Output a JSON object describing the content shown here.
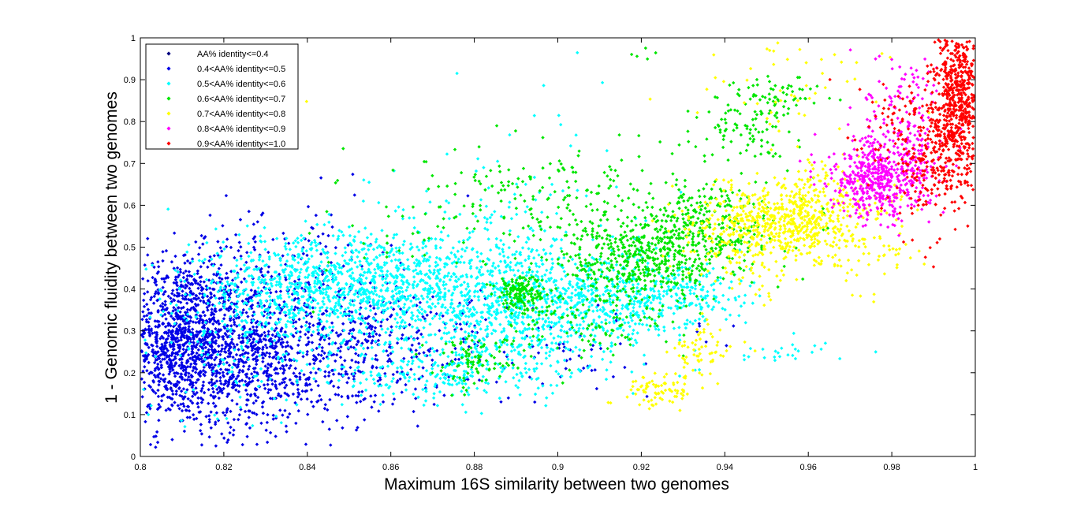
{
  "chart_data": {
    "type": "scatter",
    "title": "",
    "xlabel": "Maximum 16S similarity between two genomes",
    "ylabel": "1 - Genomic fluidity between two genomes",
    "xlim": [
      0.8,
      1.0
    ],
    "ylim": [
      0,
      1
    ],
    "xticks": [
      0.8,
      0.82,
      0.84,
      0.86,
      0.88,
      0.9,
      0.92,
      0.94,
      0.96,
      0.98,
      1
    ],
    "xtick_labels": [
      "0.8",
      "0.82",
      "0.84",
      "0.86",
      "0.88",
      "0.9",
      "0.92",
      "0.94",
      "0.96",
      "0.98",
      "1"
    ],
    "yticks": [
      0,
      0.1,
      0.2,
      0.3,
      0.4,
      0.5,
      0.6,
      0.7,
      0.8,
      0.9,
      1
    ],
    "ytick_labels": [
      "0",
      "0.1",
      "0.2",
      "0.3",
      "0.4",
      "0.5",
      "0.6",
      "0.7",
      "0.8",
      "0.9",
      "1"
    ],
    "grid": false,
    "legend_position": "top-left",
    "marker": "diamond",
    "series": [
      {
        "name": "AA% identity<=0.4",
        "color": "#000080",
        "clusters": [
          {
            "x": 0.806,
            "y": 0.22,
            "sx": 0.004,
            "sy": 0.05,
            "n": 5
          }
        ]
      },
      {
        "name": "0.4<AA% identity<=0.5",
        "color": "#0000e6",
        "clusters": [
          {
            "x": 0.809,
            "y": 0.28,
            "sx": 0.007,
            "sy": 0.1,
            "n": 950
          },
          {
            "x": 0.822,
            "y": 0.26,
            "sx": 0.009,
            "sy": 0.1,
            "n": 650
          },
          {
            "x": 0.838,
            "y": 0.24,
            "sx": 0.011,
            "sy": 0.09,
            "n": 420
          },
          {
            "x": 0.855,
            "y": 0.28,
            "sx": 0.01,
            "sy": 0.08,
            "n": 160
          },
          {
            "x": 0.875,
            "y": 0.27,
            "sx": 0.012,
            "sy": 0.07,
            "n": 80
          },
          {
            "x": 0.835,
            "y": 0.47,
            "sx": 0.012,
            "sy": 0.07,
            "n": 110
          },
          {
            "x": 0.905,
            "y": 0.24,
            "sx": 0.015,
            "sy": 0.06,
            "n": 40
          },
          {
            "x": 0.935,
            "y": 0.3,
            "sx": 0.003,
            "sy": 0.02,
            "n": 6
          }
        ]
      },
      {
        "name": "0.5<AA% identity<=0.6",
        "color": "#00ffff",
        "clusters": [
          {
            "x": 0.84,
            "y": 0.4,
            "sx": 0.014,
            "sy": 0.06,
            "n": 650
          },
          {
            "x": 0.865,
            "y": 0.4,
            "sx": 0.013,
            "sy": 0.07,
            "n": 650
          },
          {
            "x": 0.89,
            "y": 0.35,
            "sx": 0.012,
            "sy": 0.08,
            "n": 550
          },
          {
            "x": 0.91,
            "y": 0.37,
            "sx": 0.012,
            "sy": 0.06,
            "n": 420
          },
          {
            "x": 0.93,
            "y": 0.39,
            "sx": 0.008,
            "sy": 0.04,
            "n": 170
          },
          {
            "x": 0.87,
            "y": 0.2,
            "sx": 0.015,
            "sy": 0.04,
            "n": 220
          },
          {
            "x": 0.82,
            "y": 0.3,
            "sx": 0.01,
            "sy": 0.12,
            "n": 150
          },
          {
            "x": 0.885,
            "y": 0.58,
            "sx": 0.015,
            "sy": 0.07,
            "n": 90
          },
          {
            "x": 0.955,
            "y": 0.25,
            "sx": 0.008,
            "sy": 0.015,
            "n": 25
          },
          {
            "x": 0.9,
            "y": 0.8,
            "sx": 0.012,
            "sy": 0.08,
            "n": 10
          }
        ]
      },
      {
        "name": "0.6<AA% identity<=0.7",
        "color": "#00e600",
        "clusters": [
          {
            "x": 0.891,
            "y": 0.39,
            "sx": 0.003,
            "sy": 0.025,
            "n": 160
          },
          {
            "x": 0.88,
            "y": 0.23,
            "sx": 0.005,
            "sy": 0.03,
            "n": 90
          },
          {
            "x": 0.92,
            "y": 0.47,
            "sx": 0.009,
            "sy": 0.05,
            "n": 420
          },
          {
            "x": 0.935,
            "y": 0.55,
            "sx": 0.009,
            "sy": 0.06,
            "n": 320
          },
          {
            "x": 0.952,
            "y": 0.86,
            "sx": 0.005,
            "sy": 0.025,
            "n": 70
          },
          {
            "x": 0.945,
            "y": 0.78,
            "sx": 0.006,
            "sy": 0.04,
            "n": 80
          },
          {
            "x": 0.9,
            "y": 0.6,
            "sx": 0.012,
            "sy": 0.06,
            "n": 150
          },
          {
            "x": 0.91,
            "y": 0.33,
            "sx": 0.01,
            "sy": 0.05,
            "n": 120
          },
          {
            "x": 0.87,
            "y": 0.55,
            "sx": 0.015,
            "sy": 0.08,
            "n": 60
          },
          {
            "x": 0.92,
            "y": 0.95,
            "sx": 0.004,
            "sy": 0.02,
            "n": 5
          }
        ]
      },
      {
        "name": "0.7<AA% identity<=0.8",
        "color": "#ffff00",
        "clusters": [
          {
            "x": 0.952,
            "y": 0.56,
            "sx": 0.009,
            "sy": 0.045,
            "n": 520
          },
          {
            "x": 0.965,
            "y": 0.6,
            "sx": 0.008,
            "sy": 0.05,
            "n": 180
          },
          {
            "x": 0.925,
            "y": 0.16,
            "sx": 0.004,
            "sy": 0.02,
            "n": 80
          },
          {
            "x": 0.935,
            "y": 0.25,
            "sx": 0.004,
            "sy": 0.03,
            "n": 60
          },
          {
            "x": 0.955,
            "y": 0.85,
            "sx": 0.012,
            "sy": 0.08,
            "n": 50
          },
          {
            "x": 0.975,
            "y": 0.5,
            "sx": 0.007,
            "sy": 0.06,
            "n": 50
          },
          {
            "x": 0.945,
            "y": 0.45,
            "sx": 0.01,
            "sy": 0.05,
            "n": 60
          },
          {
            "x": 0.84,
            "y": 0.84,
            "sx": 0.001,
            "sy": 0.005,
            "n": 1
          }
        ]
      },
      {
        "name": "0.8<AA% identity<=0.9",
        "color": "#ff00ff",
        "clusters": [
          {
            "x": 0.977,
            "y": 0.66,
            "sx": 0.006,
            "sy": 0.045,
            "n": 500
          },
          {
            "x": 0.983,
            "y": 0.78,
            "sx": 0.006,
            "sy": 0.06,
            "n": 120
          },
          {
            "x": 0.985,
            "y": 0.9,
            "sx": 0.004,
            "sy": 0.04,
            "n": 25
          }
        ]
      },
      {
        "name": "0.9<AA% identity<=1.0",
        "color": "#ff0000",
        "clusters": [
          {
            "x": 0.996,
            "y": 0.86,
            "sx": 0.003,
            "sy": 0.09,
            "n": 650
          },
          {
            "x": 0.99,
            "y": 0.7,
            "sx": 0.005,
            "sy": 0.08,
            "n": 200
          },
          {
            "x": 0.985,
            "y": 0.8,
            "sx": 0.007,
            "sy": 0.05,
            "n": 80
          }
        ]
      }
    ]
  }
}
